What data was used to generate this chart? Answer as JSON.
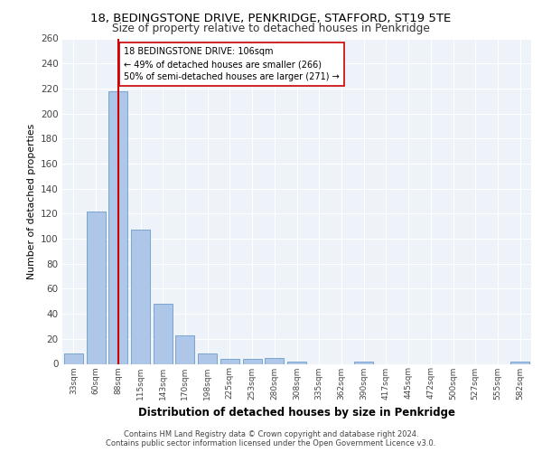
{
  "title": "18, BEDINGSTONE DRIVE, PENKRIDGE, STAFFORD, ST19 5TE",
  "subtitle": "Size of property relative to detached houses in Penkridge",
  "xlabel": "Distribution of detached houses by size in Penkridge",
  "ylabel": "Number of detached properties",
  "bar_color": "#aec6e8",
  "bar_edge_color": "#5a8fc2",
  "vline_color": "#cc0000",
  "vline_x": 2,
  "annotation_text": "18 BEDINGSTONE DRIVE: 106sqm\n← 49% of detached houses are smaller (266)\n50% of semi-detached houses are larger (271) →",
  "annotation_box_color": "white",
  "annotation_box_edge": "#cc0000",
  "categories": [
    "33sqm",
    "60sqm",
    "88sqm",
    "115sqm",
    "143sqm",
    "170sqm",
    "198sqm",
    "225sqm",
    "253sqm",
    "280sqm",
    "308sqm",
    "335sqm",
    "362sqm",
    "390sqm",
    "417sqm",
    "445sqm",
    "472sqm",
    "500sqm",
    "527sqm",
    "555sqm",
    "582sqm"
  ],
  "values": [
    8,
    122,
    218,
    107,
    48,
    23,
    8,
    4,
    4,
    5,
    2,
    0,
    0,
    2,
    0,
    0,
    0,
    0,
    0,
    0,
    2
  ],
  "ylim": [
    0,
    260
  ],
  "yticks": [
    0,
    20,
    40,
    60,
    80,
    100,
    120,
    140,
    160,
    180,
    200,
    220,
    240,
    260
  ],
  "footnote1": "Contains HM Land Registry data © Crown copyright and database right 2024.",
  "footnote2": "Contains public sector information licensed under the Open Government Licence v3.0.",
  "bg_color": "#eef2f9",
  "grid_color": "#ffffff",
  "fig_bg": "#ffffff"
}
